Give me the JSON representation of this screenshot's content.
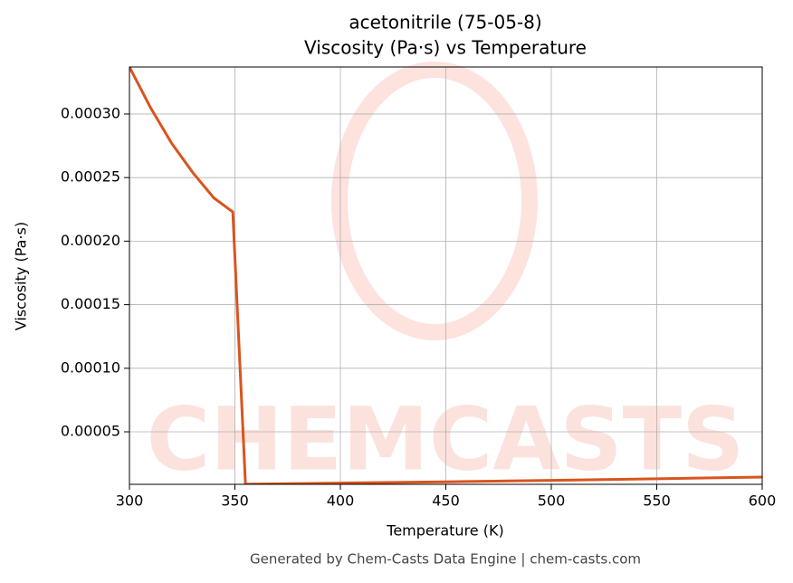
{
  "chart_data": {
    "type": "line",
    "title": "acetonitrile (75-05-8)",
    "subtitle": "Viscosity (Pa·s) vs Temperature",
    "x_label": "Temperature (K)",
    "y_label": "Viscosity (Pa·s)",
    "watermark": "CHEMCASTS",
    "footer": "Generated by Chem-Casts Data Engine | chem-casts.com",
    "x": [
      300,
      310,
      320,
      330,
      340,
      349,
      355,
      400,
      450,
      500,
      550,
      600
    ],
    "series": [
      {
        "name": "Viscosity",
        "color": "#d9541e",
        "values": [
          0.000337,
          0.000305,
          0.000277,
          0.000254,
          0.000234,
          0.000223,
          8.8e-06,
          9.7e-06,
          1.07e-05,
          1.18e-05,
          1.31e-05,
          1.44e-05
        ]
      }
    ],
    "xlim": [
      300,
      600
    ],
    "ylim": [
      8.7e-06,
      0.000337
    ],
    "xticks": [
      300,
      350,
      400,
      450,
      500,
      550,
      600
    ],
    "yticks": [
      {
        "value": 5e-05,
        "label": "0.00005"
      },
      {
        "value": 0.0001,
        "label": "0.00010"
      },
      {
        "value": 0.00015,
        "label": "0.00015"
      },
      {
        "value": 0.0002,
        "label": "0.00020"
      },
      {
        "value": 0.00025,
        "label": "0.00025"
      },
      {
        "value": 0.0003,
        "label": "0.00030"
      }
    ],
    "grid": true
  }
}
